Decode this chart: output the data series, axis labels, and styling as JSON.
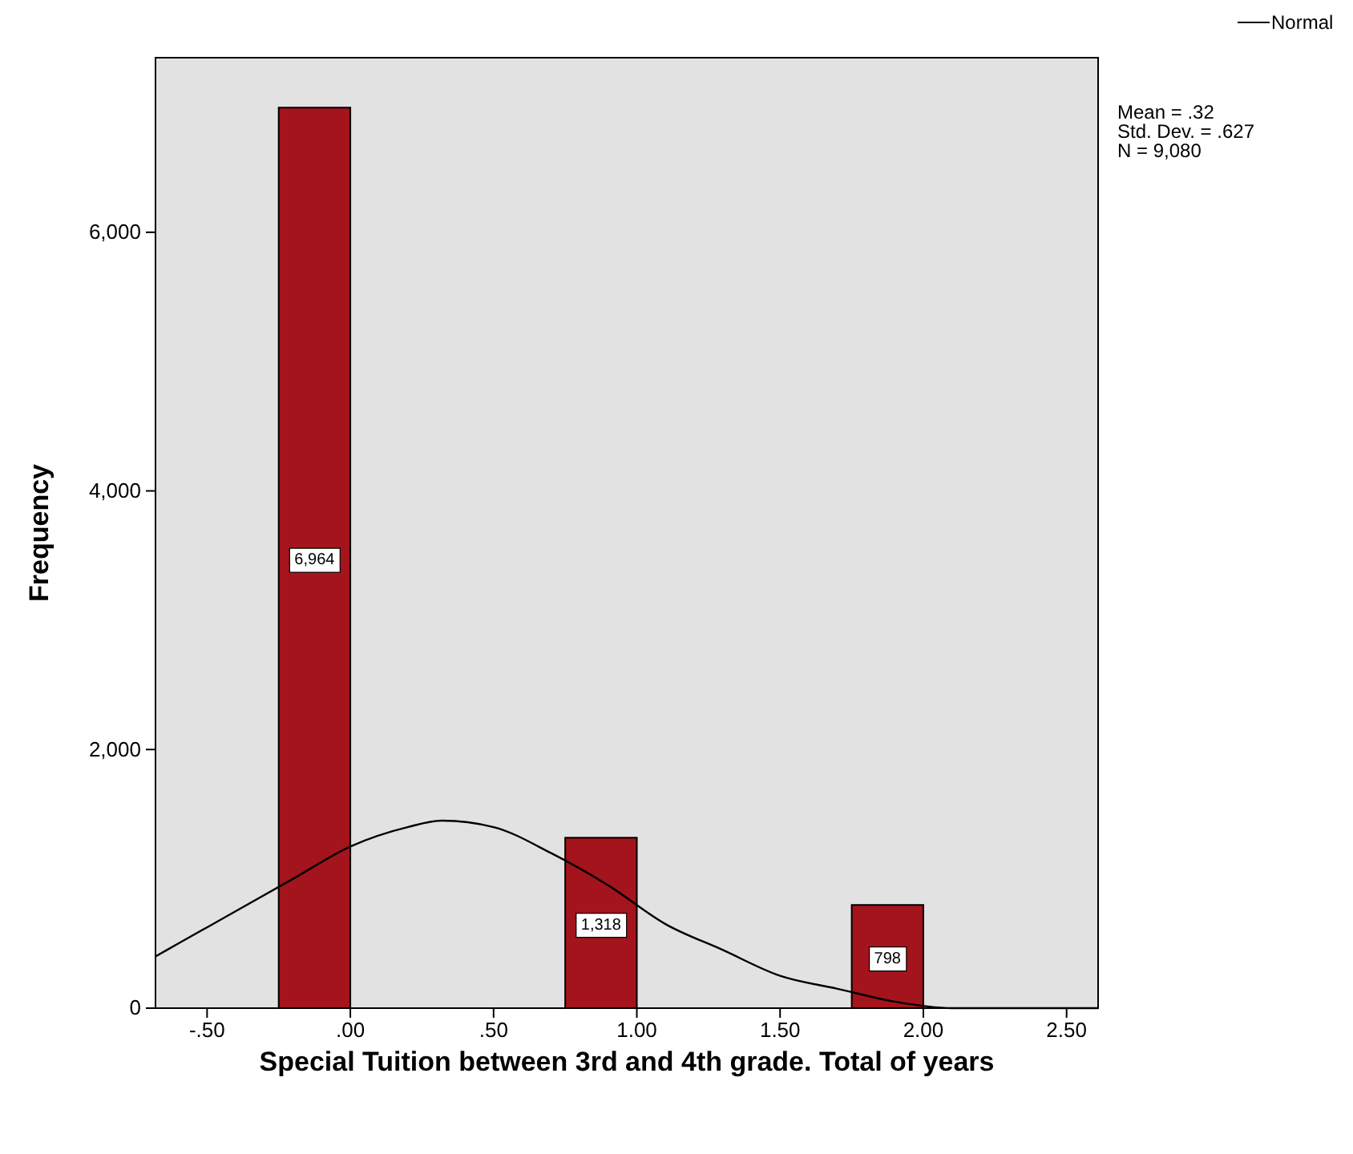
{
  "chart_data": {
    "type": "histogram",
    "xlabel": "Special Tuition between 3rd and 4th grade. Total of years",
    "ylabel": "Frequency",
    "bins": [
      -0.25,
      0,
      0.25,
      0.5,
      0.75,
      1,
      1.25,
      1.5,
      1.75,
      2
    ],
    "values": [
      6964,
      0,
      0,
      0,
      1318,
      0,
      0,
      0,
      798
    ],
    "value_labels": [
      "6,964",
      null,
      null,
      null,
      "1,318",
      null,
      null,
      null,
      "798"
    ],
    "color": "#a3141c",
    "series": [
      {
        "type": "line",
        "name": "Normal",
        "color": "#000000",
        "x": [
          -0.68,
          -0.6,
          -0.4,
          -0.2,
          0,
          0.2,
          0.32,
          0.5,
          0.7,
          0.9,
          1.1,
          1.3,
          1.5,
          1.7,
          1.9,
          2.1,
          2.3,
          2.61
        ],
        "values": [
          400,
          500,
          750,
          1000,
          1250,
          1400,
          1450,
          1400,
          1200,
          950,
          650,
          450,
          250,
          150,
          50,
          0,
          0,
          0
        ]
      }
    ],
    "xlim": [
      -0.68,
      2.61
    ],
    "xticks": [
      {
        "value": -0.5,
        "label": "-.50"
      },
      {
        "value": 0,
        "label": ".00"
      },
      {
        "value": 0.5,
        "label": ".50"
      },
      {
        "value": 1,
        "label": "1.00"
      },
      {
        "value": 1.5,
        "label": "1.50"
      },
      {
        "value": 2,
        "label": "2.00"
      },
      {
        "value": 2.5,
        "label": "2.50"
      }
    ],
    "ylim": [
      0,
      7350
    ],
    "yticks": [
      0,
      {
        "value": 2000,
        "label": "2,000"
      },
      {
        "value": 4000,
        "label": "4,000"
      },
      {
        "value": 6000,
        "label": "6,000"
      }
    ],
    "annotations": [
      "Mean = .32",
      "Std. Dev. = .627",
      "N = 9,080"
    ],
    "legend": "top right",
    "grid": false
  }
}
